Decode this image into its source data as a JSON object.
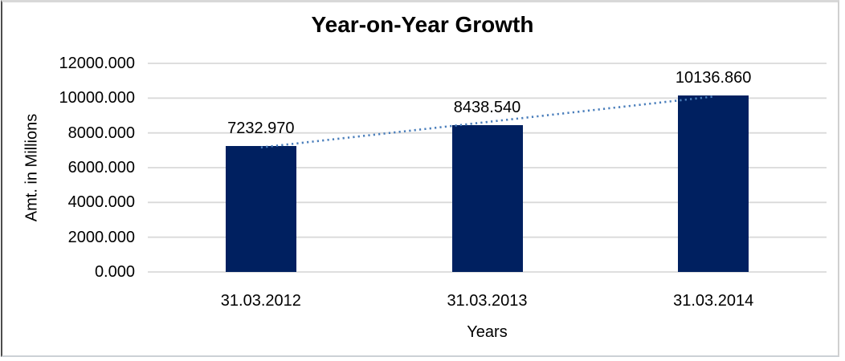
{
  "chart_data": {
    "type": "bar",
    "title": "Year-on-Year Growth",
    "xlabel": "Years",
    "ylabel": "Amt. in Millions",
    "categories": [
      "31.03.2012",
      "31.03.2013",
      "31.03.2014"
    ],
    "values": [
      7232.97,
      8438.54,
      10136.86
    ],
    "value_labels": [
      "7232.970",
      "8438.540",
      "10136.860"
    ],
    "y_tick_values": [
      0,
      2000,
      4000,
      6000,
      8000,
      10000,
      12000
    ],
    "y_ticks": [
      "0.000",
      "2000.000",
      "4000.000",
      "6000.000",
      "8000.000",
      "10000.000",
      "12000.000"
    ],
    "ylim": [
      0,
      12000
    ],
    "grid": true,
    "legend": "none",
    "bar_color": "#002060",
    "gridline_color": "#d9d9d9",
    "trendline": {
      "type": "linear",
      "style": "dotted",
      "color": "#4a7ebb"
    }
  }
}
